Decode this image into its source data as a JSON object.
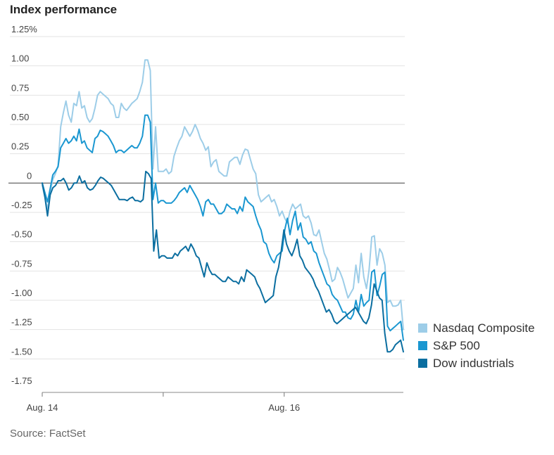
{
  "chart_data": {
    "type": "line",
    "title": "Index performance",
    "source": "Source: FactSet",
    "xlabel": "",
    "ylabel": "",
    "ylim": [
      -1.75,
      1.25
    ],
    "y_ticks": [
      {
        "value": 1.25,
        "label": "1.25%"
      },
      {
        "value": 1.0,
        "label": "1.00"
      },
      {
        "value": 0.75,
        "label": "0.75"
      },
      {
        "value": 0.5,
        "label": "0.50"
      },
      {
        "value": 0.25,
        "label": "0.25"
      },
      {
        "value": 0,
        "label": "0"
      },
      {
        "value": -0.25,
        "label": "-0.25"
      },
      {
        "value": -0.5,
        "label": "-0.50"
      },
      {
        "value": -0.75,
        "label": "-0.75"
      },
      {
        "value": -1.0,
        "label": "-1.00"
      },
      {
        "value": -1.25,
        "label": "-1.25"
      },
      {
        "value": -1.5,
        "label": "-1.50"
      },
      {
        "value": -1.75,
        "label": "-1.75"
      }
    ],
    "x_range": [
      0,
      100
    ],
    "x_ticks": [
      {
        "position": 0,
        "label": "Aug. 14"
      },
      {
        "position": 33.5,
        "label": ""
      },
      {
        "position": 67,
        "label": "Aug. 16"
      }
    ],
    "series": [
      {
        "name": "Nasdaq Composite",
        "color": "#9dcde8",
        "values": [
          -0.02,
          -0.12,
          -0.22,
          -0.08,
          0.03,
          0.08,
          0.15,
          0.48,
          0.6,
          0.7,
          0.58,
          0.52,
          0.68,
          0.66,
          0.78,
          0.64,
          0.66,
          0.56,
          0.52,
          0.55,
          0.64,
          0.75,
          0.78,
          0.76,
          0.74,
          0.72,
          0.68,
          0.66,
          0.56,
          0.56,
          0.68,
          0.64,
          0.62,
          0.65,
          0.68,
          0.7,
          0.72,
          0.78,
          0.86,
          1.05,
          1.05,
          0.96,
          0.12,
          0.48,
          0.1,
          0.1,
          0.1,
          0.12,
          0.08,
          0.1,
          0.23,
          0.3,
          0.36,
          0.4,
          0.48,
          0.44,
          0.4,
          0.44,
          0.5,
          0.45,
          0.38,
          0.34,
          0.28,
          0.31,
          0.14,
          0.18,
          0.2,
          0.1,
          0.08,
          0.06,
          0.06,
          0.18,
          0.2,
          0.22,
          0.22,
          0.16,
          0.24,
          0.29,
          0.28,
          0.2,
          0.12,
          0.08,
          -0.1,
          -0.16,
          -0.14,
          -0.12,
          -0.1,
          -0.16,
          -0.14,
          -0.2,
          -0.28,
          -0.24,
          -0.3,
          -0.34,
          -0.24,
          -0.18,
          -0.22,
          -0.2,
          -0.18,
          -0.28,
          -0.3,
          -0.28,
          -0.34,
          -0.44,
          -0.45,
          -0.4,
          -0.5,
          -0.6,
          -0.65,
          -0.74,
          -0.84,
          -0.82,
          -0.72,
          -0.76,
          -0.82,
          -0.9,
          -0.98,
          -0.94,
          -0.9,
          -0.7,
          -0.85,
          -0.6,
          -0.8,
          -0.9,
          -0.74,
          -0.46,
          -0.45,
          -0.7,
          -0.56,
          -0.6,
          -0.7,
          -1.02,
          -1.0,
          -1.05,
          -1.05,
          -1.04,
          -1.0,
          -1.25
        ]
      },
      {
        "name": "S&P 500",
        "color": "#1a97d1",
        "values": [
          0.0,
          -0.08,
          -0.16,
          -0.05,
          0.07,
          0.1,
          0.14,
          0.3,
          0.34,
          0.38,
          0.34,
          0.36,
          0.4,
          0.36,
          0.46,
          0.34,
          0.36,
          0.3,
          0.28,
          0.26,
          0.38,
          0.4,
          0.45,
          0.44,
          0.42,
          0.4,
          0.36,
          0.32,
          0.26,
          0.28,
          0.28,
          0.26,
          0.28,
          0.3,
          0.32,
          0.3,
          0.3,
          0.34,
          0.4,
          0.58,
          0.58,
          0.52,
          -0.14,
          0.0,
          -0.17,
          -0.15,
          -0.15,
          -0.17,
          -0.17,
          -0.17,
          -0.15,
          -0.12,
          -0.08,
          -0.06,
          -0.04,
          -0.08,
          -0.02,
          -0.06,
          -0.1,
          -0.14,
          -0.2,
          -0.28,
          -0.16,
          -0.14,
          -0.18,
          -0.18,
          -0.22,
          -0.26,
          -0.26,
          -0.24,
          -0.18,
          -0.2,
          -0.22,
          -0.22,
          -0.26,
          -0.2,
          -0.24,
          -0.12,
          -0.16,
          -0.18,
          -0.2,
          -0.28,
          -0.35,
          -0.4,
          -0.5,
          -0.52,
          -0.6,
          -0.65,
          -0.68,
          -0.62,
          -0.6,
          -0.58,
          -0.4,
          -0.3,
          -0.44,
          -0.32,
          -0.24,
          -0.4,
          -0.34,
          -0.46,
          -0.48,
          -0.52,
          -0.5,
          -0.58,
          -0.6,
          -0.68,
          -0.74,
          -0.8,
          -0.86,
          -0.88,
          -0.95,
          -0.98,
          -1.0,
          -1.05,
          -1.1,
          -1.1,
          -1.15,
          -1.16,
          -1.12,
          -1.0,
          -1.1,
          -0.95,
          -1.05,
          -1.02,
          -1.0,
          -0.76,
          -0.74,
          -0.96,
          -0.88,
          -0.78,
          -0.76,
          -1.22,
          -1.26,
          -1.24,
          -1.22,
          -1.2,
          -1.18,
          -1.34
        ]
      },
      {
        "name": "Dow industrials",
        "color": "#0b6ea0",
        "values": [
          0.0,
          -0.12,
          -0.28,
          -0.1,
          -0.04,
          -0.02,
          0.02,
          0.02,
          0.04,
          0.0,
          -0.06,
          -0.04,
          0.0,
          0.0,
          0.06,
          0.0,
          0.02,
          -0.04,
          -0.06,
          -0.05,
          -0.02,
          0.02,
          0.05,
          0.04,
          0.02,
          0.0,
          -0.02,
          -0.06,
          -0.1,
          -0.14,
          -0.14,
          -0.14,
          -0.15,
          -0.13,
          -0.12,
          -0.15,
          -0.15,
          -0.16,
          -0.14,
          0.1,
          0.08,
          0.04,
          -0.58,
          -0.4,
          -0.64,
          -0.62,
          -0.62,
          -0.64,
          -0.64,
          -0.64,
          -0.6,
          -0.62,
          -0.58,
          -0.56,
          -0.54,
          -0.58,
          -0.52,
          -0.56,
          -0.62,
          -0.64,
          -0.72,
          -0.8,
          -0.68,
          -0.74,
          -0.78,
          -0.78,
          -0.8,
          -0.82,
          -0.84,
          -0.84,
          -0.8,
          -0.82,
          -0.84,
          -0.84,
          -0.86,
          -0.8,
          -0.84,
          -0.74,
          -0.76,
          -0.78,
          -0.8,
          -0.86,
          -0.9,
          -0.96,
          -1.02,
          -1.0,
          -0.98,
          -0.96,
          -0.8,
          -0.72,
          -0.58,
          -0.4,
          -0.52,
          -0.58,
          -0.62,
          -0.56,
          -0.48,
          -0.62,
          -0.66,
          -0.72,
          -0.75,
          -0.78,
          -0.82,
          -0.88,
          -0.92,
          -0.98,
          -1.04,
          -1.1,
          -1.08,
          -1.12,
          -1.18,
          -1.2,
          -1.18,
          -1.16,
          -1.14,
          -1.12,
          -1.1,
          -1.08,
          -1.06,
          -1.1,
          -1.14,
          -1.18,
          -1.2,
          -1.15,
          -1.04,
          -0.86,
          -0.92,
          -0.98,
          -1.0,
          -1.28,
          -1.44,
          -1.44,
          -1.42,
          -1.38,
          -1.36,
          -1.34,
          -1.44
        ]
      }
    ],
    "legend": {
      "position": "right"
    }
  }
}
